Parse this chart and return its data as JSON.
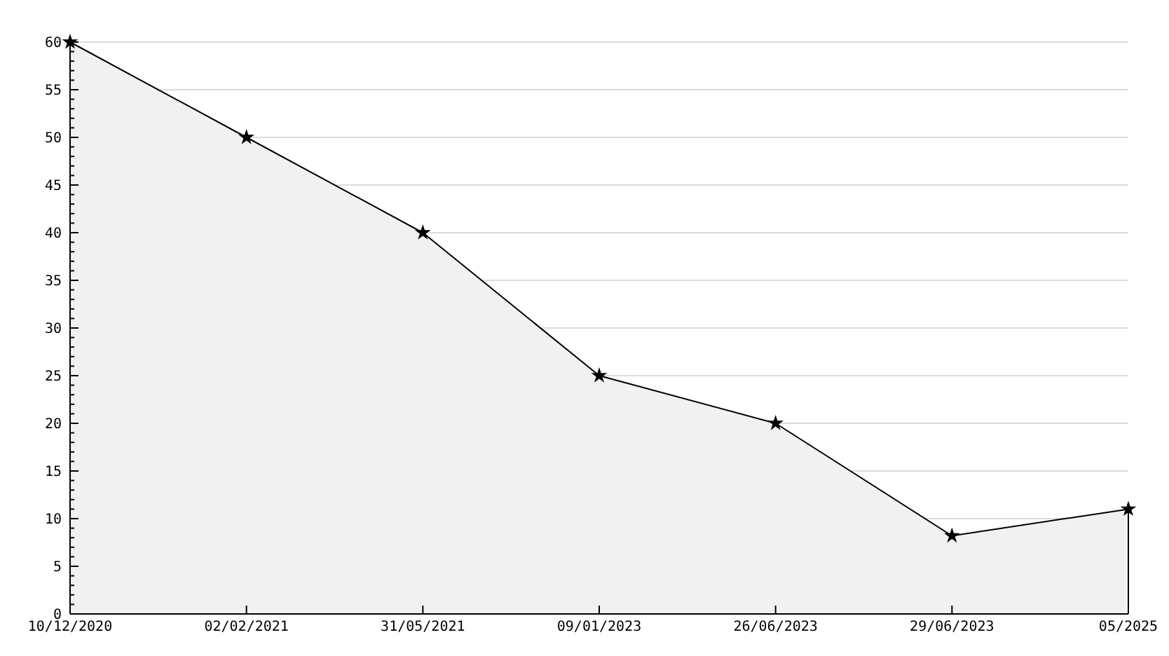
{
  "chart_data": {
    "type": "area",
    "categories": [
      "10/12/2020",
      "02/02/2021",
      "31/05/2021",
      "09/01/2023",
      "26/06/2023",
      "29/06/2023",
      "05/2025"
    ],
    "series": [
      {
        "color": "#f1f1f1",
        "values": [
          60,
          50,
          40,
          25,
          20,
          8.2,
          11
        ]
      }
    ],
    "ylim": [
      0,
      60
    ],
    "yticks": [
      0,
      {
        "value": 1,
        "label": null
      },
      {
        "value": 2,
        "label": null
      },
      {
        "value": 3,
        "label": null
      },
      {
        "value": 4,
        "label": null
      },
      5,
      {
        "value": 6,
        "label": null
      },
      {
        "value": 7,
        "label": null
      },
      {
        "value": 8,
        "label": null
      },
      {
        "value": 9,
        "label": null
      },
      10,
      {
        "value": 11,
        "label": null
      },
      {
        "value": 12,
        "label": null
      },
      {
        "value": 13,
        "label": null
      },
      {
        "value": 14,
        "label": null
      },
      15,
      {
        "value": 16,
        "label": null
      },
      {
        "value": 17,
        "label": null
      },
      {
        "value": 18,
        "label": null
      },
      {
        "value": 19,
        "label": null
      },
      20,
      {
        "value": 21,
        "label": null
      },
      {
        "value": 22,
        "label": null
      },
      {
        "value": 23,
        "label": null
      },
      {
        "value": 24,
        "label": null
      },
      25,
      {
        "value": 26,
        "label": null
      },
      {
        "value": 27,
        "label": null
      },
      {
        "value": 28,
        "label": null
      },
      {
        "value": 29,
        "label": null
      },
      30,
      {
        "value": 31,
        "label": null
      },
      {
        "value": 32,
        "label": null
      },
      {
        "value": 33,
        "label": null
      },
      {
        "value": 34,
        "label": null
      },
      35,
      {
        "value": 36,
        "label": null
      },
      {
        "value": 37,
        "label": null
      },
      {
        "value": 38,
        "label": null
      },
      {
        "value": 39,
        "label": null
      },
      40,
      {
        "value": 41,
        "label": null
      },
      {
        "value": 42,
        "label": null
      },
      {
        "value": 43,
        "label": null
      },
      {
        "value": 44,
        "label": null
      },
      45,
      {
        "value": 46,
        "label": null
      },
      {
        "value": 47,
        "label": null
      },
      {
        "value": 48,
        "label": null
      },
      {
        "value": 49,
        "label": null
      },
      50,
      {
        "value": 51,
        "label": null
      },
      {
        "value": 52,
        "label": null
      },
      {
        "value": 53,
        "label": null
      },
      {
        "value": 54,
        "label": null
      },
      55,
      {
        "value": 56,
        "label": null
      },
      {
        "value": 57,
        "label": null
      },
      {
        "value": 58,
        "label": null
      },
      {
        "value": 59,
        "label": null
      },
      60
    ],
    "grid": "y",
    "marker": "star",
    "line_style": "solid"
  }
}
